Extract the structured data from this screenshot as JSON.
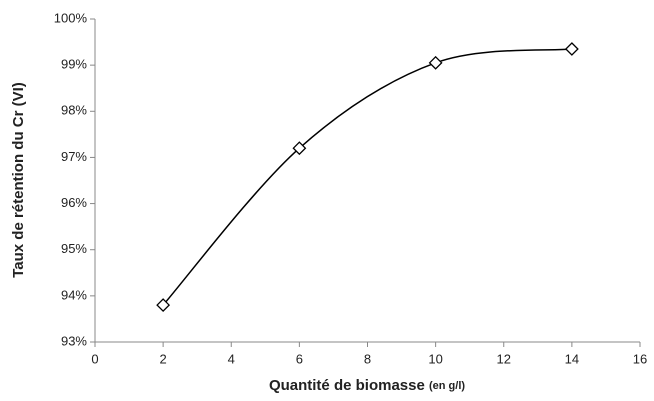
{
  "chart_data": {
    "type": "line",
    "x_label": "Quantité de biomasse",
    "x_label_unit": "(en g/l)",
    "y_label": "Taux de rétention du Cr (VI)",
    "x": [
      2,
      6,
      10,
      14
    ],
    "series": [
      {
        "color": "#000000",
        "values": [
          93.8,
          97.2,
          99.05,
          99.35
        ]
      }
    ],
    "smooth": true,
    "marker": "diamond",
    "xlim": [
      0,
      16
    ],
    "xticks": [
      0,
      2,
      4,
      6,
      8,
      10,
      12,
      14,
      16
    ],
    "ylim": [
      93,
      100
    ],
    "yticks": [
      {
        "value": 93,
        "label": "93%"
      },
      {
        "value": 94,
        "label": "94%"
      },
      {
        "value": 95,
        "label": "95%"
      },
      {
        "value": 96,
        "label": "96%"
      },
      {
        "value": 97,
        "label": "97%"
      },
      {
        "value": 98,
        "label": "98%"
      },
      {
        "value": 99,
        "label": "99%"
      },
      {
        "value": 100,
        "label": "100%"
      }
    ],
    "grid": false
  }
}
